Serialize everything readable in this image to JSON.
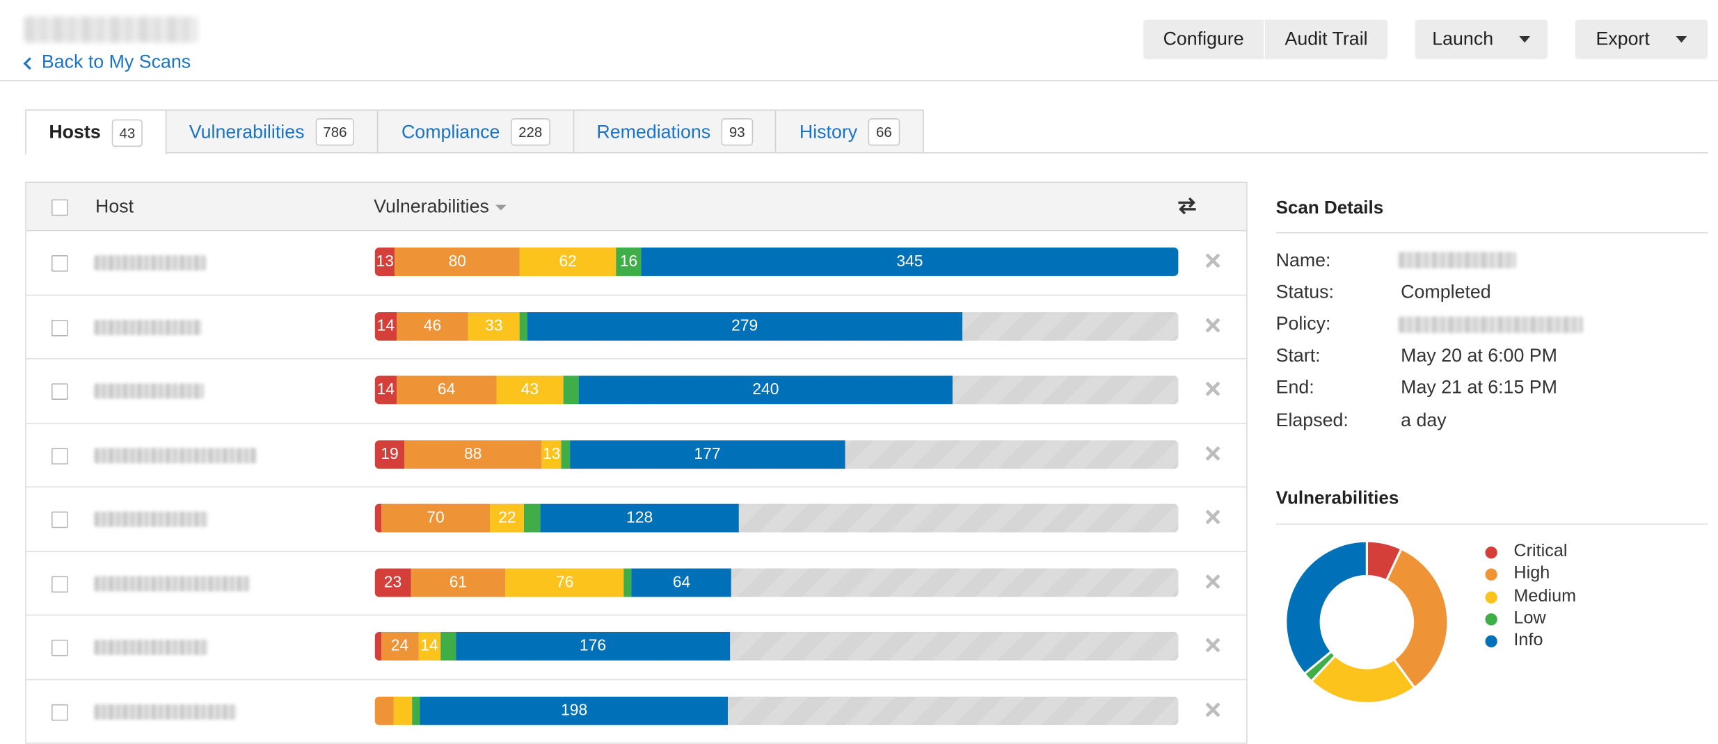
{
  "header": {
    "back_label": "Back to My Scans",
    "buttons": {
      "configure": "Configure",
      "audit_trail": "Audit Trail",
      "launch": "Launch",
      "export": "Export"
    }
  },
  "tabs": [
    {
      "label": "Hosts",
      "count": "43",
      "active": true
    },
    {
      "label": "Vulnerabilities",
      "count": "786",
      "active": false
    },
    {
      "label": "Compliance",
      "count": "228",
      "active": false
    },
    {
      "label": "Remediations",
      "count": "93",
      "active": false
    },
    {
      "label": "History",
      "count": "66",
      "active": false
    }
  ],
  "hosts_table": {
    "columns": {
      "host": "Host",
      "vulnerabilities": "Vulnerabilities"
    },
    "bar_scale_max": 516,
    "rows": [
      {
        "critical": 13,
        "high": 80,
        "medium": 62,
        "low": 16,
        "info": 345
      },
      {
        "critical": 14,
        "high": 46,
        "medium": 33,
        "low": 5,
        "info": 279
      },
      {
        "critical": 14,
        "high": 64,
        "medium": 43,
        "low": 10,
        "info": 240
      },
      {
        "critical": 19,
        "high": 88,
        "medium": 13,
        "low": 5,
        "info": 177
      },
      {
        "critical": 4,
        "high": 70,
        "medium": 22,
        "low": 10,
        "info": 128
      },
      {
        "critical": 23,
        "high": 61,
        "medium": 76,
        "low": 5,
        "info": 64
      },
      {
        "critical": 4,
        "high": 24,
        "medium": 14,
        "low": 10,
        "info": 176
      },
      {
        "critical": 0,
        "high": 12,
        "medium": 12,
        "low": 5,
        "info": 198
      }
    ]
  },
  "scan_details": {
    "title": "Scan Details",
    "fields": {
      "name_label": "Name:",
      "status_label": "Status:",
      "status_value": "Completed",
      "policy_label": "Policy:",
      "start_label": "Start:",
      "start_value": "May 20 at 6:00 PM",
      "end_label": "End:",
      "end_value": "May 21 at 6:15 PM",
      "elapsed_label": "Elapsed:",
      "elapsed_value": "a day"
    }
  },
  "vulnerabilities_panel": {
    "title": "Vulnerabilities",
    "legend": [
      "Critical",
      "High",
      "Medium",
      "Low",
      "Info"
    ],
    "donut_shares": [
      7,
      33,
      22,
      2,
      36
    ]
  },
  "colors": {
    "critical": "#d43f3a",
    "high": "#ee9336",
    "medium": "#fdc31d",
    "low": "#3fae49",
    "info": "#0071b9",
    "link": "#1a73c4"
  }
}
